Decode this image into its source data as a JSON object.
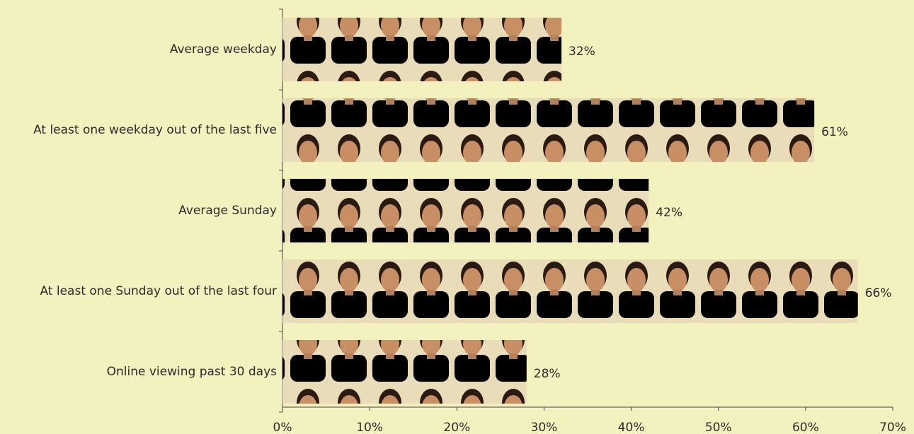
{
  "chart_data": {
    "type": "hbar",
    "categories": [
      "Average weekday",
      "At least one weekday out of the last five",
      "Average Sunday",
      "At least one Sunday out of the last four",
      "Online viewing past 30 days"
    ],
    "values": [
      32,
      61,
      42,
      66,
      28
    ],
    "value_labels": [
      "32%",
      "61%",
      "42%",
      "66%",
      "28%"
    ],
    "color": "#4a4f9a",
    "xlim": [
      0,
      70
    ],
    "xticks": [
      {
        "value": 0,
        "label": "0%"
      },
      {
        "value": 10,
        "label": "10%"
      },
      {
        "value": 20,
        "label": "20%"
      },
      {
        "value": 30,
        "label": "30%"
      },
      {
        "value": 40,
        "label": "40%"
      },
      {
        "value": 50,
        "label": "50%"
      },
      {
        "value": 60,
        "label": "60%"
      },
      {
        "value": 70,
        "label": "70%"
      }
    ]
  }
}
